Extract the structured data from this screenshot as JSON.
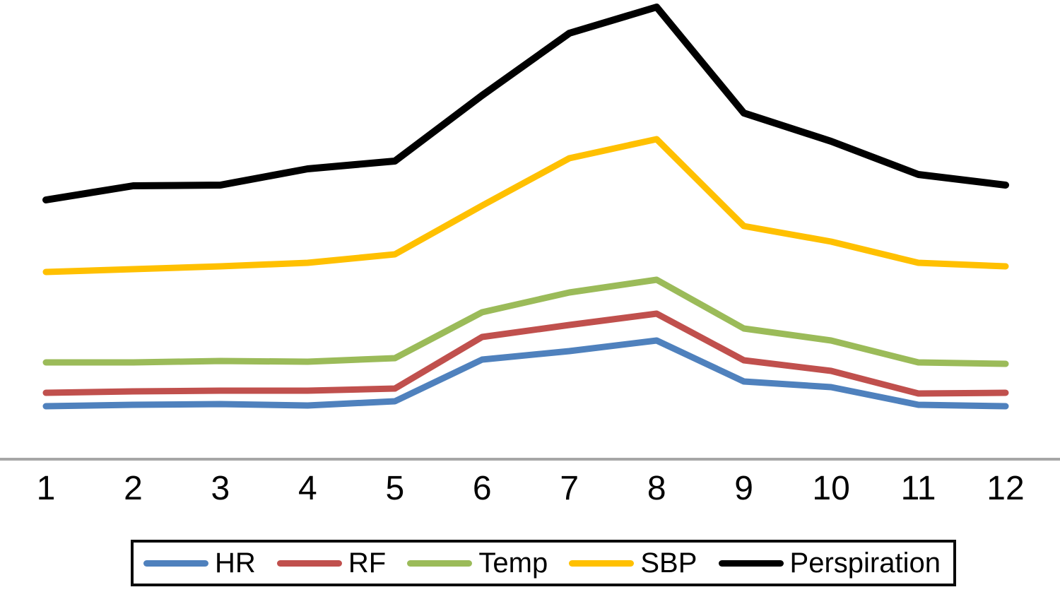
{
  "chart_data": {
    "type": "line",
    "title": "",
    "xlabel": "",
    "ylabel": "",
    "categories": [
      "1",
      "2",
      "3",
      "4",
      "5",
      "6",
      "7",
      "8",
      "9",
      "10",
      "11",
      "12"
    ],
    "x_range": [
      1,
      12
    ],
    "grid": false,
    "y_axis_shown": false,
    "value_units": "relative height above baseline (no y-axis labels shown in figure)",
    "ylim": [
      0,
      660
    ],
    "legend_position": "bottom-boxed",
    "axis_color": "#a6a6a6",
    "series": [
      {
        "name": "HR",
        "color": "#4F81BD",
        "values": [
          75,
          77,
          78,
          76,
          82,
          141,
          153,
          168,
          110,
          102,
          77,
          75
        ]
      },
      {
        "name": "RF",
        "color": "#C0504D",
        "values": [
          94,
          96,
          97,
          97,
          100,
          173,
          190,
          206,
          140,
          125,
          93,
          94
        ]
      },
      {
        "name": "Temp",
        "color": "#9BBB59",
        "values": [
          137,
          137,
          139,
          138,
          143,
          208,
          236,
          254,
          185,
          168,
          137,
          135
        ]
      },
      {
        "name": "SBP",
        "color": "#FFC000",
        "values": [
          265,
          269,
          273,
          278,
          290,
          359,
          426,
          453,
          330,
          308,
          278,
          273
        ]
      },
      {
        "name": "Perspiration",
        "color": "#000000",
        "values": [
          367,
          387,
          388,
          411,
          422,
          515,
          603,
          640,
          490,
          450,
          403,
          388
        ]
      }
    ]
  }
}
